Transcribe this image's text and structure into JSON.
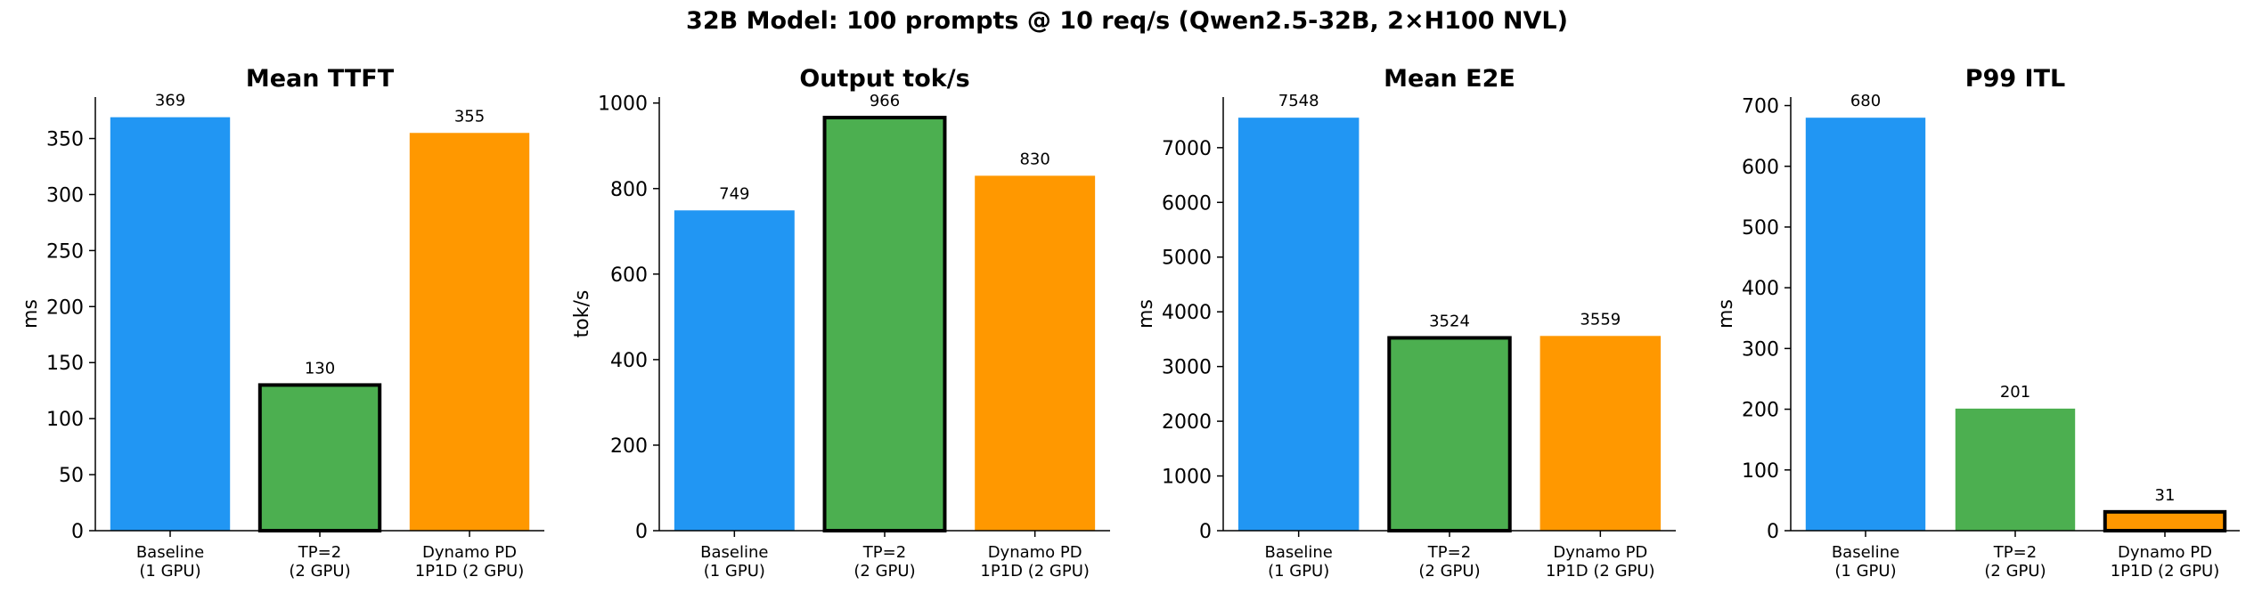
{
  "suptitle": "32B Model: 100 prompts @ 10 req/s (Qwen2.5-32B, 2×H100 NVL)",
  "colors": {
    "baseline": "#2196F3",
    "tp2": "#4CAF50",
    "dynamo": "#FF9800",
    "highlight_edge": "#000000"
  },
  "chart_data": [
    {
      "type": "bar",
      "title": "Mean TTFT",
      "ylabel": "ms",
      "categories": [
        [
          "Baseline",
          "(1 GPU)"
        ],
        [
          "TP=2",
          "(2 GPU)"
        ],
        [
          "Dynamo PD",
          "1P1D (2 GPU)"
        ]
      ],
      "values": [
        369,
        130,
        355
      ],
      "value_labels": [
        "369",
        "130",
        "355"
      ],
      "highlight_index": 1,
      "ylim": [
        0,
        387
      ],
      "yticks": [
        0,
        50,
        100,
        150,
        200,
        250,
        300,
        350
      ]
    },
    {
      "type": "bar",
      "title": "Output tok/s",
      "ylabel": "tok/s",
      "categories": [
        [
          "Baseline",
          "(1 GPU)"
        ],
        [
          "TP=2",
          "(2 GPU)"
        ],
        [
          "Dynamo PD",
          "1P1D (2 GPU)"
        ]
      ],
      "values": [
        749,
        966,
        830
      ],
      "value_labels": [
        "749",
        "966",
        "830"
      ],
      "highlight_index": 1,
      "ylim": [
        0,
        1014
      ],
      "yticks": [
        0,
        200,
        400,
        600,
        800,
        1000
      ]
    },
    {
      "type": "bar",
      "title": "Mean E2E",
      "ylabel": "ms",
      "categories": [
        [
          "Baseline",
          "(1 GPU)"
        ],
        [
          "TP=2",
          "(2 GPU)"
        ],
        [
          "Dynamo PD",
          "1P1D (2 GPU)"
        ]
      ],
      "values": [
        7548,
        3524,
        3559
      ],
      "value_labels": [
        "7548",
        "3524",
        "3559"
      ],
      "highlight_index": 1,
      "ylim": [
        0,
        7925
      ],
      "yticks": [
        0,
        1000,
        2000,
        3000,
        4000,
        5000,
        6000,
        7000
      ]
    },
    {
      "type": "bar",
      "title": "P99 ITL",
      "ylabel": "ms",
      "categories": [
        [
          "Baseline",
          "(1 GPU)"
        ],
        [
          "TP=2",
          "(2 GPU)"
        ],
        [
          "Dynamo PD",
          "1P1D (2 GPU)"
        ]
      ],
      "values": [
        680,
        201,
        31
      ],
      "value_labels": [
        "680",
        "201",
        "31"
      ],
      "highlight_index": 2,
      "ylim": [
        0,
        714
      ],
      "yticks": [
        0,
        100,
        200,
        300,
        400,
        500,
        600,
        700
      ]
    }
  ]
}
